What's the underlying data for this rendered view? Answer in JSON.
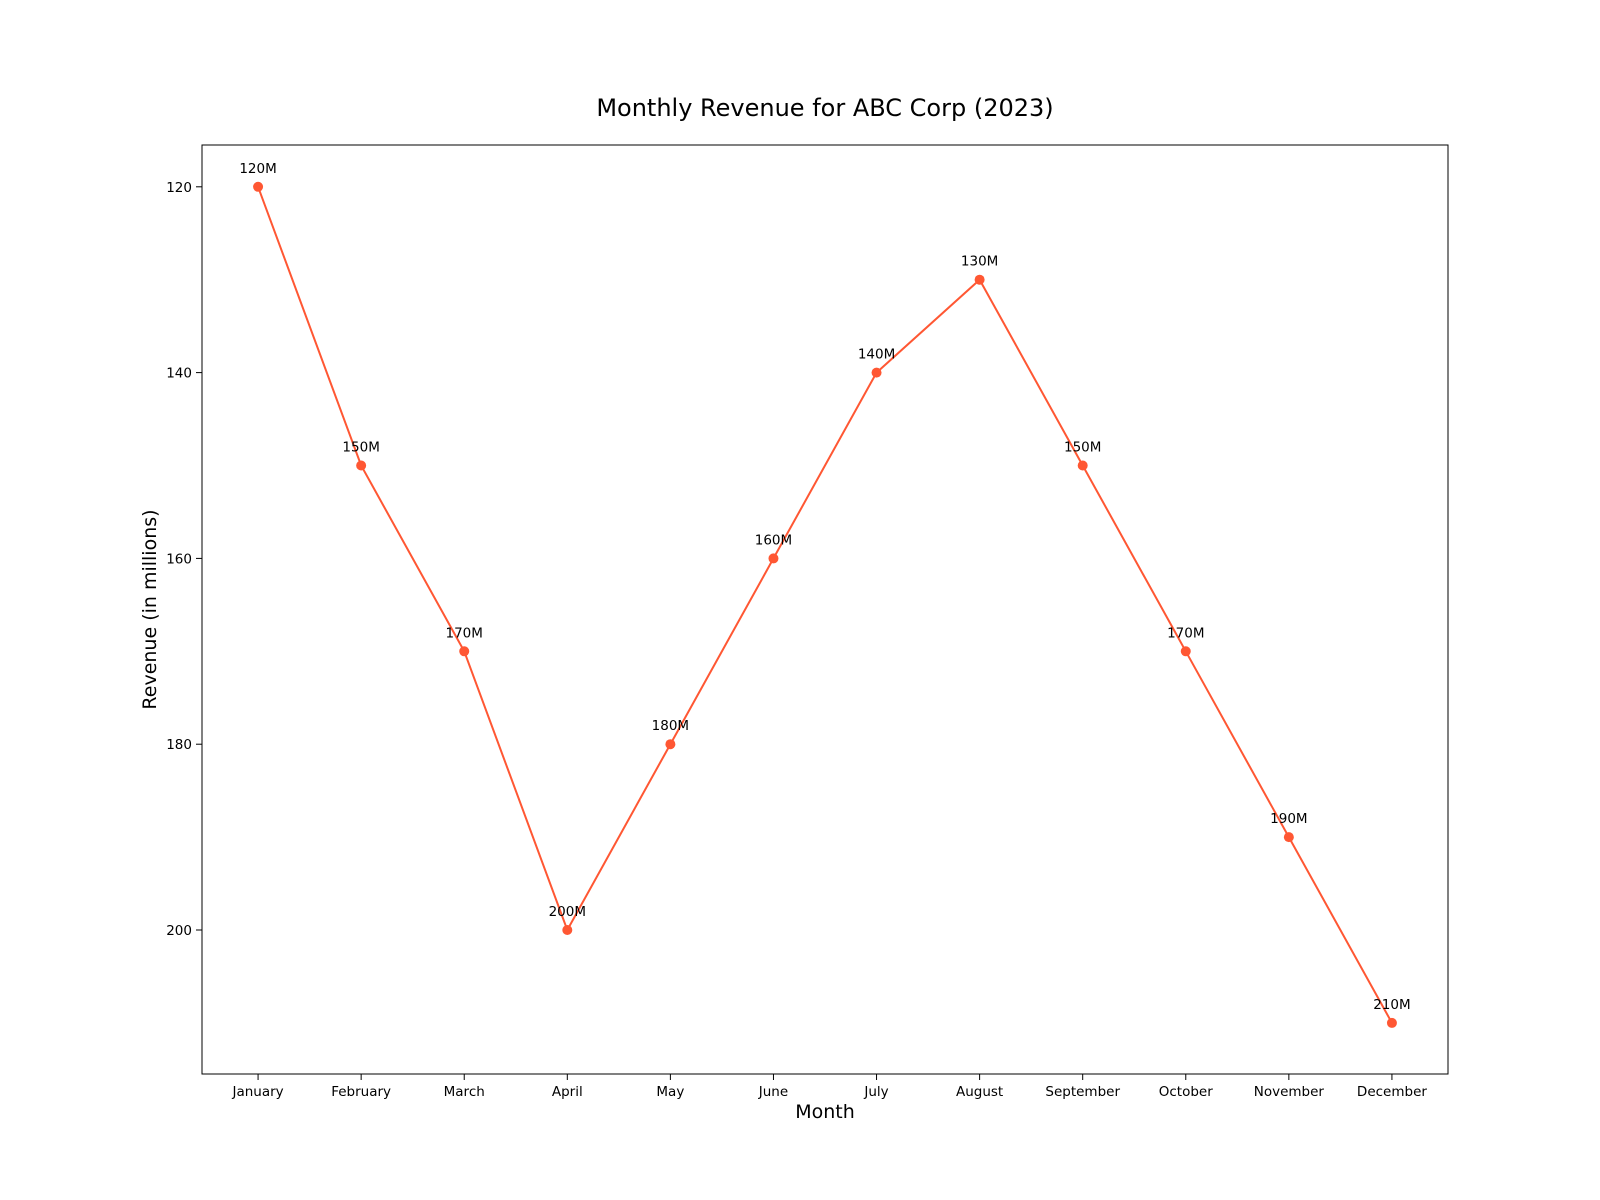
{
  "chart_data": {
    "type": "line",
    "title": "Monthly Revenue for ABC Corp (2023)",
    "xlabel": "Month",
    "ylabel": "Revenue (in millions)",
    "categories": [
      "January",
      "February",
      "March",
      "April",
      "May",
      "June",
      "July",
      "August",
      "September",
      "October",
      "November",
      "December"
    ],
    "series": [
      {
        "values": [
          120,
          150,
          170,
          200,
          180,
          160,
          140,
          130,
          150,
          170,
          190,
          210
        ],
        "data_labels": [
          "120M",
          "150M",
          "170M",
          "200M",
          "180M",
          "160M",
          "140M",
          "130M",
          "150M",
          "170M",
          "190M",
          "210M"
        ],
        "color": "#ff5733",
        "marker": "circle"
      }
    ],
    "ylim": [
      215.5,
      115.5
    ],
    "y_inverted": true,
    "yticks": [
      120,
      140,
      160,
      180,
      200
    ],
    "ytick_labels": [
      "120",
      "140",
      "160",
      "180",
      "200"
    ],
    "grid": false,
    "legend": "none"
  }
}
